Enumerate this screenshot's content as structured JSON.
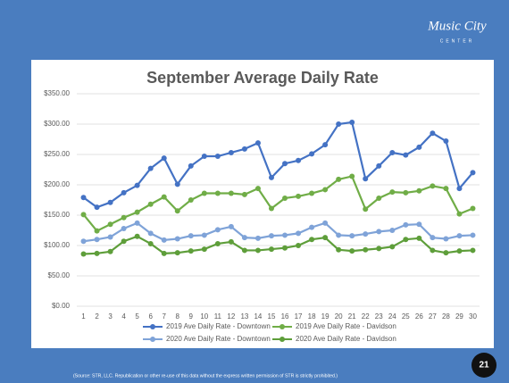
{
  "slide": {
    "logo": "Music City",
    "logo_sub": "CENTER",
    "source": "(Source: STR, LLC. Republication or other re-use of this data without the express written permission of STR is strictly prohibited.)",
    "page_number": "21"
  },
  "chart_data": {
    "type": "line",
    "title": "September Average Daily Rate",
    "categories": [
      "1",
      "2",
      "3",
      "4",
      "5",
      "6",
      "7",
      "8",
      "9",
      "10",
      "11",
      "12",
      "13",
      "14",
      "15",
      "16",
      "17",
      "18",
      "19",
      "20",
      "21",
      "22",
      "23",
      "24",
      "25",
      "26",
      "27",
      "28",
      "29",
      "30"
    ],
    "series": [
      {
        "name": "2019 Ave Daily Rate - Downtown",
        "color": "#4472c4",
        "values": [
          179,
          163,
          171,
          187,
          199,
          227,
          244,
          201,
          231,
          247,
          247,
          253,
          259,
          269,
          212,
          235,
          240,
          251,
          266,
          300,
          303,
          210,
          231,
          253,
          249,
          262,
          285,
          272,
          194,
          220
        ]
      },
      {
        "name": "2019 Ave Daily Rate - Davidson",
        "color": "#70ad47",
        "values": [
          151,
          124,
          135,
          146,
          155,
          168,
          180,
          157,
          175,
          186,
          186,
          186,
          184,
          194,
          161,
          178,
          181,
          186,
          192,
          209,
          214,
          160,
          178,
          188,
          187,
          190,
          198,
          194,
          152,
          161
        ]
      },
      {
        "name": "2020 Ave Daily Rate - Downtown",
        "color": "#7fa3d8",
        "values": [
          107,
          110,
          114,
          128,
          137,
          120,
          109,
          111,
          116,
          117,
          126,
          131,
          113,
          112,
          116,
          117,
          120,
          130,
          137,
          117,
          116,
          119,
          123,
          125,
          134,
          135,
          113,
          111,
          116,
          117
        ]
      },
      {
        "name": "2020 Ave Daily Rate - Davidson",
        "color": "#5e9e3a",
        "values": [
          86,
          87,
          90,
          107,
          115,
          103,
          87,
          88,
          91,
          94,
          103,
          106,
          92,
          92,
          94,
          96,
          100,
          110,
          113,
          93,
          91,
          93,
          95,
          98,
          110,
          112,
          92,
          88,
          91,
          92
        ]
      }
    ],
    "ylim": [
      0,
      350
    ],
    "yticks": [
      {
        "value": 0,
        "label": "$0.00"
      },
      {
        "value": 50,
        "label": "$50.00"
      },
      {
        "value": 100,
        "label": "$100.00"
      },
      {
        "value": 150,
        "label": "$150.00"
      },
      {
        "value": 200,
        "label": "$200.00"
      },
      {
        "value": 250,
        "label": "$250.00"
      },
      {
        "value": 300,
        "label": "$300.00"
      },
      {
        "value": 350,
        "label": "$350.00"
      }
    ],
    "grid": true
  }
}
